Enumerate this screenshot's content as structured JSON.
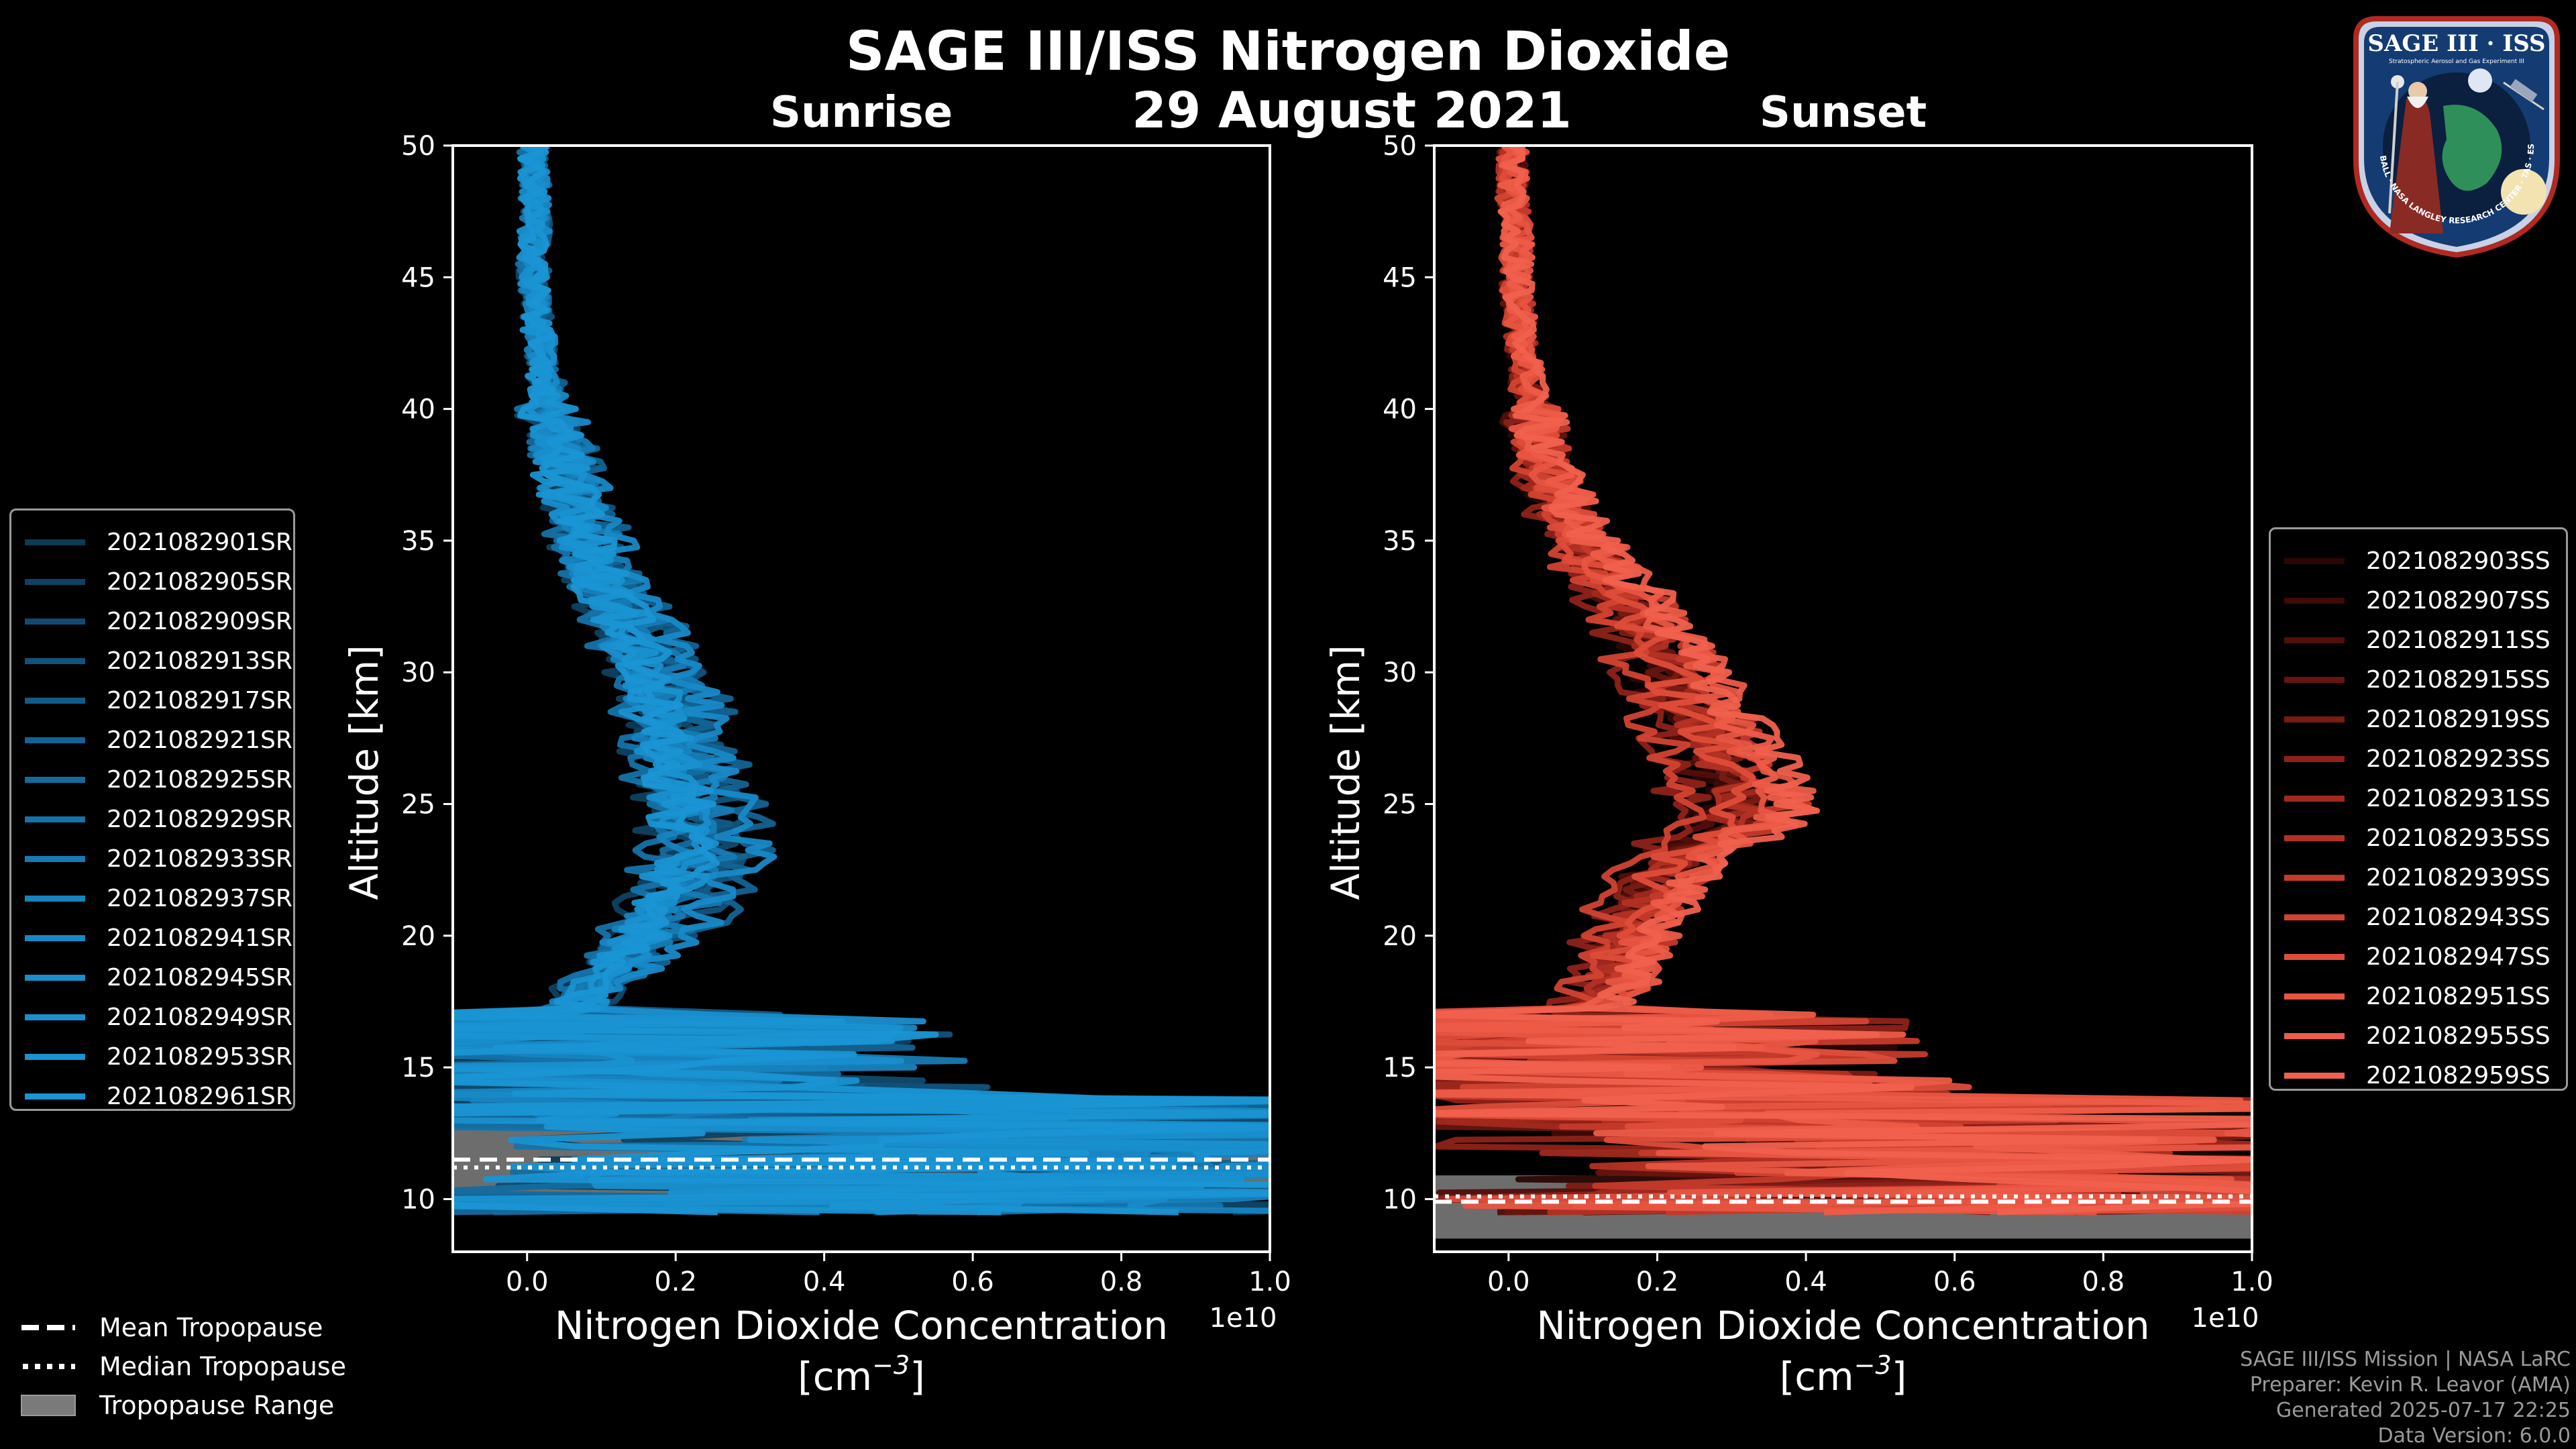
{
  "title": "SAGE III/ISS Nitrogen Dioxide",
  "subtitle_date": "29 August 2021",
  "logo": {
    "text": "SAGE III · ISS",
    "subtext": "Stratospheric Aerosol and Gas Experiment III",
    "ring_text": "BALL · NASA LANGLEY RESEARCH CENTER · TAS · ESA"
  },
  "colors": {
    "sunrise": "#1a95d4",
    "sunset": "#f0614d",
    "tropopause_range": "#808080",
    "background": "#000000"
  },
  "tropopause_legend": [
    {
      "label": "Mean Tropopause",
      "style": "dashed"
    },
    {
      "label": "Median Tropopause",
      "style": "dotted"
    },
    {
      "label": "Tropopause Range",
      "style": "box"
    }
  ],
  "credits": [
    "SAGE III/ISS Mission | NASA LaRC",
    "Preparer: Kevin R. Leavor (AMA)",
    "Generated 2025-07-17 22:25",
    "Data Version: 6.0.0"
  ],
  "chart_data": [
    {
      "type": "line",
      "panel": "sunrise",
      "title": "Sunrise",
      "xlabel": "Nitrogen Dioxide Concentration",
      "xlabel_units": "[cm",
      "xlabel_units_exp": "−3",
      "xlabel_units_close": "]",
      "ylabel": "Altitude [km]",
      "xlim": [
        -0.1,
        1.0
      ],
      "ylim": [
        8,
        50
      ],
      "x_scale_label": "1e10",
      "x_ticks": [
        0.0,
        0.2,
        0.4,
        0.6,
        0.8,
        1.0
      ],
      "x_tick_labels": [
        "0.0",
        "0.2",
        "0.4",
        "0.6",
        "0.8",
        "1.0"
      ],
      "y_ticks": [
        10,
        15,
        20,
        25,
        30,
        35,
        40,
        45,
        50
      ],
      "y_tick_labels": [
        "10",
        "15",
        "20",
        "25",
        "30",
        "35",
        "40",
        "45",
        "50"
      ],
      "series_names": [
        "2021082901SR",
        "2021082905SR",
        "2021082909SR",
        "2021082913SR",
        "2021082917SR",
        "2021082921SR",
        "2021082925SR",
        "2021082929SR",
        "2021082933SR",
        "2021082937SR",
        "2021082941SR",
        "2021082945SR",
        "2021082949SR",
        "2021082953SR",
        "2021082961SR"
      ],
      "series_colors": [
        "#0d3a55",
        "#0e4262",
        "#104b6f",
        "#11537c",
        "#125b88",
        "#136394",
        "#146b9f",
        "#1573aa",
        "#167bb5",
        "#1783bf",
        "#1889c7",
        "#198ecd",
        "#1991d0",
        "#1a93d2",
        "#1a95d4"
      ],
      "mean_profile": {
        "altitude": [
          10,
          11,
          12,
          13,
          14,
          15,
          16,
          17,
          18,
          19,
          20,
          21,
          22,
          23,
          24,
          25,
          26,
          27,
          28,
          29,
          30,
          31,
          32,
          33,
          34,
          35,
          36,
          37,
          38,
          39,
          40,
          41,
          42,
          43,
          44,
          45,
          46,
          47,
          48,
          49,
          50
        ],
        "value": [
          0.3,
          0.45,
          0.5,
          0.35,
          0.15,
          0.1,
          0.07,
          0.07,
          0.09,
          0.13,
          0.17,
          0.2,
          0.22,
          0.24,
          0.24,
          0.23,
          0.22,
          0.21,
          0.2,
          0.19,
          0.18,
          0.16,
          0.14,
          0.12,
          0.1,
          0.085,
          0.07,
          0.06,
          0.05,
          0.04,
          0.03,
          0.025,
          0.02,
          0.015,
          0.012,
          0.01,
          0.01,
          0.01,
          0.01,
          0.01,
          0.01
        ]
      },
      "tropopause": {
        "range": [
          10.2,
          12.7
        ],
        "mean": 11.5,
        "median": 11.2
      }
    },
    {
      "type": "line",
      "panel": "sunset",
      "title": "Sunset",
      "xlabel": "Nitrogen Dioxide Concentration",
      "xlabel_units": "[cm",
      "xlabel_units_exp": "−3",
      "xlabel_units_close": "]",
      "ylabel": "Altitude [km]",
      "xlim": [
        -0.1,
        1.0
      ],
      "ylim": [
        8,
        50
      ],
      "x_scale_label": "1e10",
      "x_ticks": [
        0.0,
        0.2,
        0.4,
        0.6,
        0.8,
        1.0
      ],
      "x_tick_labels": [
        "0.0",
        "0.2",
        "0.4",
        "0.6",
        "0.8",
        "1.0"
      ],
      "y_ticks": [
        10,
        15,
        20,
        25,
        30,
        35,
        40,
        45,
        50
      ],
      "y_tick_labels": [
        "10",
        "15",
        "20",
        "25",
        "30",
        "35",
        "40",
        "45",
        "50"
      ],
      "series_names": [
        "2021082903SS",
        "2021082907SS",
        "2021082911SS",
        "2021082915SS",
        "2021082919SS",
        "2021082923SS",
        "2021082931SS",
        "2021082935SS",
        "2021082939SS",
        "2021082943SS",
        "2021082947SS",
        "2021082951SS",
        "2021082955SS",
        "2021082959SS"
      ],
      "series_colors": [
        "#2a0705",
        "#3d0b08",
        "#510f0b",
        "#66150f",
        "#7a1b14",
        "#8e2219",
        "#a1291e",
        "#b33124",
        "#c43a2b",
        "#d24332",
        "#de4d3a",
        "#e75542",
        "#ed5c48",
        "#f0614d"
      ],
      "mean_profile": {
        "altitude": [
          9,
          10,
          11,
          12,
          13,
          14,
          15,
          16,
          17,
          18,
          19,
          20,
          21,
          22,
          23,
          24,
          25,
          26,
          27,
          28,
          29,
          30,
          31,
          32,
          33,
          34,
          35,
          36,
          37,
          38,
          39,
          40,
          41,
          42,
          43,
          44,
          45,
          46,
          47,
          48,
          49,
          50
        ],
        "value": [
          0.3,
          0.4,
          0.55,
          0.5,
          0.3,
          0.15,
          0.08,
          0.07,
          0.1,
          0.13,
          0.15,
          0.16,
          0.18,
          0.2,
          0.23,
          0.28,
          0.32,
          0.3,
          0.28,
          0.26,
          0.24,
          0.22,
          0.2,
          0.18,
          0.15,
          0.12,
          0.1,
          0.08,
          0.06,
          0.05,
          0.04,
          0.03,
          0.025,
          0.02,
          0.015,
          0.012,
          0.01,
          0.01,
          0.01,
          0.005,
          0.005,
          0.005
        ]
      },
      "tropopause": {
        "range": [
          8.5,
          10.9
        ],
        "mean": 9.9,
        "median": 10.1
      }
    }
  ]
}
